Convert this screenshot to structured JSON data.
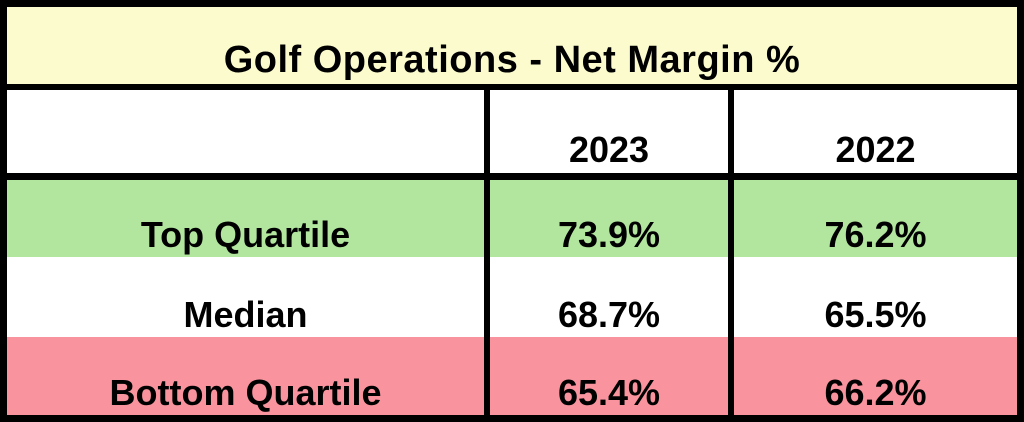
{
  "table": {
    "title": "Golf Operations - Net Margin %",
    "year_headers": [
      "2023",
      "2022"
    ],
    "rows": [
      {
        "label": "Top Quartile",
        "values": [
          "73.9%",
          "76.2%"
        ]
      },
      {
        "label": "Median",
        "values": [
          "68.7%",
          "65.5%"
        ]
      },
      {
        "label": "Bottom Quartile",
        "values": [
          "65.4%",
          "66.2%"
        ]
      }
    ]
  },
  "colors": {
    "title_bg": "#FBFBCD",
    "top_quartile_bg": "#B2E69E",
    "median_bg": "#FFFFFF",
    "bottom_quartile_bg": "#F9939E",
    "border": "#000000",
    "text": "#000000"
  },
  "chart_data": {
    "type": "table",
    "title": "Golf Operations - Net Margin %",
    "columns": [
      "",
      "2023",
      "2022"
    ],
    "rows": [
      [
        "Top Quartile",
        "73.9%",
        "76.2%"
      ],
      [
        "Median",
        "68.7%",
        "65.5%"
      ],
      [
        "Bottom Quartile",
        "65.4%",
        "66.2%"
      ]
    ],
    "numeric_values": {
      "2023": {
        "top_quartile": 73.9,
        "median": 68.7,
        "bottom_quartile": 65.4
      },
      "2022": {
        "top_quartile": 76.2,
        "median": 65.5,
        "bottom_quartile": 66.2
      }
    },
    "units": "percent",
    "row_band_colors": [
      "#B2E69E",
      "#FFFFFF",
      "#F9939E"
    ],
    "title_band_color": "#FBFBCD"
  }
}
